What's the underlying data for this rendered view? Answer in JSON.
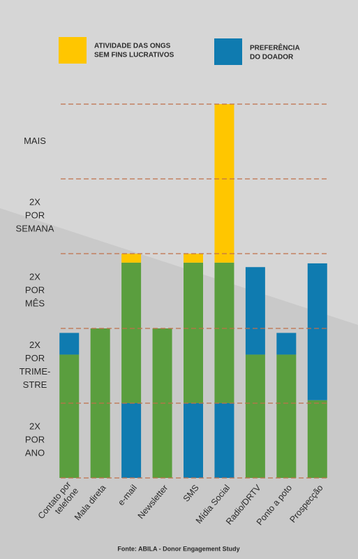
{
  "chart_data": {
    "type": "bar",
    "stacked": true,
    "categories": [
      "Contato por\ntelefone",
      "Mala direta",
      "e-mail",
      "Newsletter",
      "SMS",
      "Mídia Social",
      "Radio/DRTV",
      "Ponto a poto",
      "Prospecção"
    ],
    "series": [
      {
        "color": "#0f7bb0",
        "values": [
          0,
          0,
          1.0,
          0,
          1.0,
          1.0,
          0,
          0,
          0
        ]
      },
      {
        "color": "#5a9e3e",
        "values": [
          1.65,
          2.0,
          1.88,
          2.0,
          1.88,
          1.88,
          1.65,
          1.65,
          1.04
        ]
      },
      {
        "name": "PREFERÊNCIA\nDO DOADOR",
        "color": "#0f7bb0",
        "values": [
          0.29,
          0,
          0,
          0,
          0,
          0,
          1.17,
          0.29,
          1.83
        ]
      },
      {
        "name": "ATIVIDADE DAS ONGS\nSEM FINS LUCRATIVOS",
        "color": "#ffc600",
        "values": [
          0,
          0,
          0.12,
          0,
          0.12,
          2.12,
          0,
          0,
          0
        ]
      }
    ],
    "ylim": [
      0,
      5
    ],
    "yticks": [
      {
        "value": 0.5,
        "label": "2X\nPOR\nANO"
      },
      {
        "value": 1.5,
        "label": "2X\nPOR\nTRIME-\nSTRE"
      },
      {
        "value": 2.5,
        "label": "2X\nPOR\nMÊS"
      },
      {
        "value": 3.5,
        "label": "2X\nPOR\nSEMANA"
      },
      {
        "value": 4.5,
        "label": "MAIS"
      }
    ],
    "ygrid": [
      0,
      1,
      2,
      3,
      4,
      5
    ],
    "source": "Fonte: ABILA - Donor Engagement Study"
  }
}
